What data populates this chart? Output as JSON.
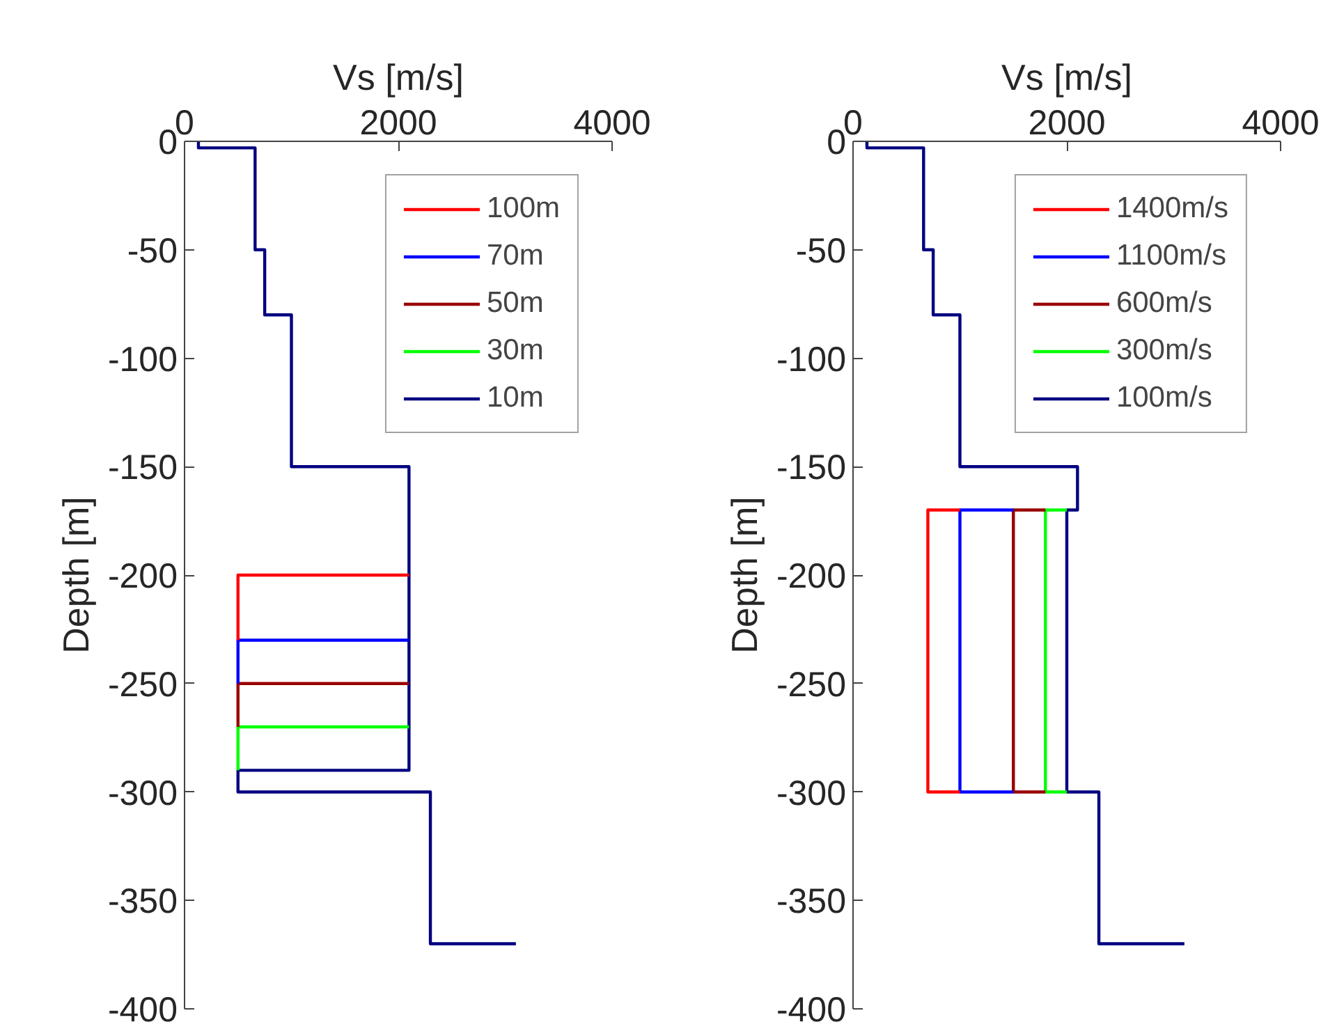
{
  "chart_data": [
    {
      "type": "line",
      "xlabel": "Vs [m/s]",
      "ylabel": "Depth [m]",
      "xlim": [
        0,
        4000
      ],
      "ylim": [
        -400,
        0
      ],
      "xticks": [
        0,
        2000,
        4000
      ],
      "yticks": [
        0,
        -50,
        -100,
        -150,
        -200,
        -250,
        -300,
        -350,
        -400
      ],
      "grid": false,
      "legend": "top right",
      "marker": "none",
      "line_style": "solid",
      "series": [
        {
          "name": "100m",
          "color": "#ff0000",
          "x": [
            2100,
            500,
            500
          ],
          "values": [
            -200,
            -200,
            -230
          ]
        },
        {
          "name": "70m",
          "color": "#0000ff",
          "x": [
            2100,
            500,
            500
          ],
          "values": [
            -230,
            -230,
            -250
          ]
        },
        {
          "name": "50m",
          "color": "#990000",
          "x": [
            2100,
            500,
            500
          ],
          "values": [
            -250,
            -250,
            -270
          ]
        },
        {
          "name": "30m",
          "color": "#00ff00",
          "x": [
            2100,
            500,
            500
          ],
          "values": [
            -270,
            -270,
            -290
          ]
        },
        {
          "name": "10m",
          "color": "#000080",
          "x": [
            130,
            130,
            660,
            660,
            750,
            750,
            1000,
            1000,
            2100,
            2100,
            500,
            500,
            2300,
            2300,
            3100
          ],
          "values": [
            0,
            -3,
            -3,
            -50,
            -50,
            -80,
            -80,
            -150,
            -150,
            -290,
            -290,
            -300,
            -300,
            -370,
            -370
          ]
        }
      ]
    },
    {
      "type": "line",
      "xlabel": "Vs [m/s]",
      "ylabel": "Depth [m]",
      "xlim": [
        0,
        4000
      ],
      "ylim": [
        -400,
        0
      ],
      "xticks": [
        0,
        2000,
        4000
      ],
      "yticks": [
        0,
        -50,
        -100,
        -150,
        -200,
        -250,
        -300,
        -350,
        -400
      ],
      "grid": false,
      "legend": "top right",
      "marker": "none",
      "line_style": "solid",
      "series": [
        {
          "name": "1400m/s",
          "color": "#ff0000",
          "x": [
            1000,
            700,
            700,
            1000
          ],
          "values": [
            -170,
            -170,
            -300,
            -300
          ]
        },
        {
          "name": "1100m/s",
          "color": "#0000ff",
          "x": [
            1500,
            1000,
            1000,
            1500
          ],
          "values": [
            -170,
            -170,
            -300,
            -300
          ]
        },
        {
          "name": "600m/s",
          "color": "#990000",
          "x": [
            1800,
            1500,
            1500,
            1800
          ],
          "values": [
            -170,
            -170,
            -300,
            -300
          ]
        },
        {
          "name": "300m/s",
          "color": "#00ff00",
          "x": [
            2000,
            1800,
            1800,
            2000
          ],
          "values": [
            -170,
            -170,
            -300,
            -300
          ]
        },
        {
          "name": "100m/s",
          "color": "#000080",
          "x": [
            130,
            130,
            660,
            660,
            750,
            750,
            1000,
            1000,
            2100,
            2100,
            2000,
            2000,
            2300,
            2300,
            3100
          ],
          "values": [
            0,
            -3,
            -3,
            -50,
            -50,
            -80,
            -80,
            -150,
            -150,
            -170,
            -170,
            -300,
            -300,
            -370,
            -370
          ]
        }
      ]
    }
  ]
}
